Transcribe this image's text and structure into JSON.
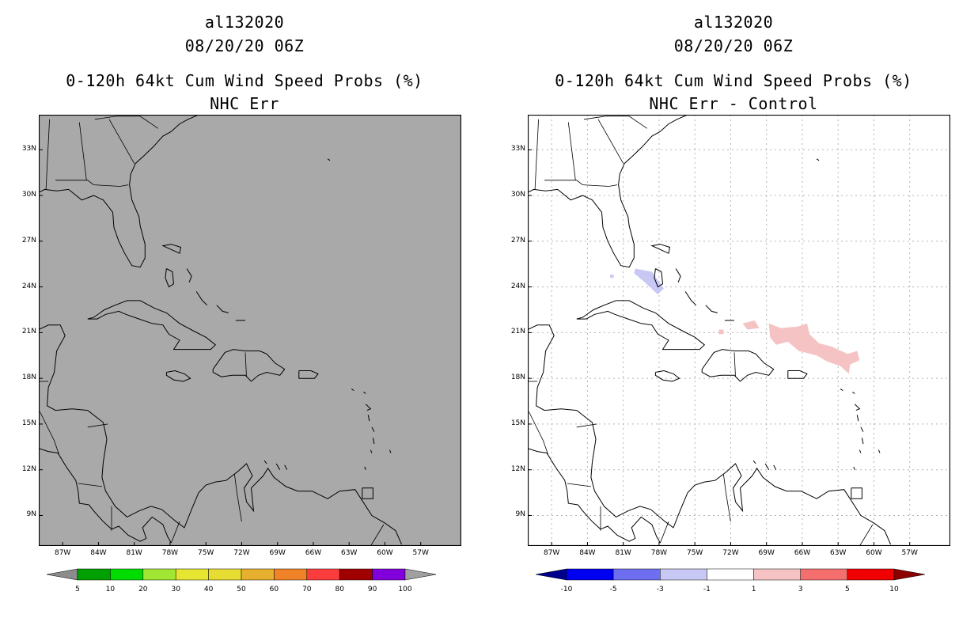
{
  "panels": [
    {
      "storm_id": "al132020",
      "datetime": "08/20/20 06Z",
      "product": "0-120h 64kt Cum Wind Speed Probs (%)",
      "subtitle": "NHC Err"
    },
    {
      "storm_id": "al132020",
      "datetime": "08/20/20 06Z",
      "product": "0-120h 64kt Cum Wind Speed Probs (%)",
      "subtitle": "NHC Err - Control"
    }
  ],
  "map": {
    "lat_labels": [
      "33N",
      "30N",
      "27N",
      "24N",
      "21N",
      "18N",
      "15N",
      "12N",
      "9N"
    ],
    "lon_labels": [
      "87W",
      "84W",
      "81W",
      "78W",
      "75W",
      "72W",
      "69W",
      "66W",
      "63W",
      "60W",
      "57W"
    ]
  },
  "colorbar_left": {
    "labels": [
      "5",
      "10",
      "20",
      "30",
      "40",
      "50",
      "60",
      "70",
      "80",
      "90",
      "100"
    ],
    "colors": [
      "#8c8c8c",
      "#00a000",
      "#00dc00",
      "#a0e632",
      "#e6e632",
      "#e6dc32",
      "#e6af2d",
      "#f08228",
      "#fa3c3c",
      "#a00000",
      "#8200dc",
      "#a0a0a0"
    ]
  },
  "colorbar_right": {
    "labels": [
      "-10",
      "-5",
      "-3",
      "-1",
      "1",
      "3",
      "5",
      "10"
    ],
    "colors": [
      "#00008c",
      "#0000f0",
      "#6e6ef0",
      "#c8c8f5",
      "#ffffff",
      "#f5c3c3",
      "#f56e6e",
      "#f00000",
      "#8c0000"
    ]
  },
  "colors": {
    "land_sea_fill_left": "#a9a9a9",
    "diff_negative": "#c8c8f5",
    "diff_positive": "#f5c3c3",
    "grid": "#b4b4b4"
  }
}
